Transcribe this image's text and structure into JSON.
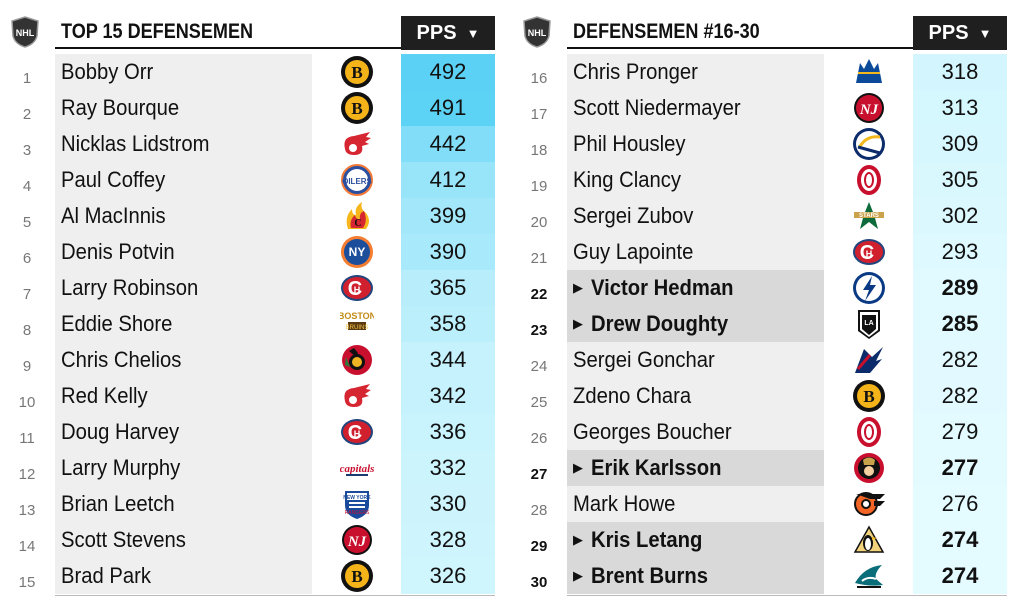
{
  "chart_data": [
    {
      "type": "table",
      "title": "TOP 15 DEFENSEMEN",
      "value_header": "PPS",
      "rows": [
        {
          "rank": "1",
          "name": "Bobby Orr",
          "team": "bruins",
          "value": 492,
          "highlight": false
        },
        {
          "rank": "2",
          "name": "Ray Bourque",
          "team": "bruins",
          "value": 491,
          "highlight": false
        },
        {
          "rank": "3",
          "name": "Nicklas Lidstrom",
          "team": "red-wings",
          "value": 442,
          "highlight": false
        },
        {
          "rank": "4",
          "name": "Paul Coffey",
          "team": "oilers",
          "value": 412,
          "highlight": false
        },
        {
          "rank": "5",
          "name": "Al MacInnis",
          "team": "flames",
          "value": 399,
          "highlight": false
        },
        {
          "rank": "6",
          "name": "Denis Potvin",
          "team": "islanders",
          "value": 390,
          "highlight": false
        },
        {
          "rank": "7",
          "name": "Larry Robinson",
          "team": "canadiens",
          "value": 365,
          "highlight": false
        },
        {
          "rank": "8",
          "name": "Eddie Shore",
          "team": "boston",
          "value": 358,
          "highlight": false
        },
        {
          "rank": "9",
          "name": "Chris Chelios",
          "team": "blackhawks",
          "value": 344,
          "highlight": false
        },
        {
          "rank": "10",
          "name": "Red Kelly",
          "team": "red-wings",
          "value": 342,
          "highlight": false
        },
        {
          "rank": "11",
          "name": "Doug Harvey",
          "team": "canadiens",
          "value": 336,
          "highlight": false
        },
        {
          "rank": "12",
          "name": "Larry Murphy",
          "team": "capitals",
          "value": 332,
          "highlight": false
        },
        {
          "rank": "13",
          "name": "Brian Leetch",
          "team": "rangers",
          "value": 330,
          "highlight": false
        },
        {
          "rank": "14",
          "name": "Scott Stevens",
          "team": "devils",
          "value": 328,
          "highlight": false
        },
        {
          "rank": "15",
          "name": "Brad Park",
          "team": "bruins",
          "value": 326,
          "highlight": false
        }
      ]
    },
    {
      "type": "table",
      "title": "DEFENSEMEN #16-30",
      "value_header": "PPS",
      "rows": [
        {
          "rank": "16",
          "name": "Chris Pronger",
          "team": "blues",
          "value": 318,
          "highlight": false
        },
        {
          "rank": "17",
          "name": "Scott Niedermayer",
          "team": "devils",
          "value": 313,
          "highlight": false
        },
        {
          "rank": "18",
          "name": "Phil Housley",
          "team": "sabres",
          "value": 309,
          "highlight": false
        },
        {
          "rank": "19",
          "name": "King Clancy",
          "team": "senators-o",
          "value": 305,
          "highlight": false
        },
        {
          "rank": "20",
          "name": "Sergei Zubov",
          "team": "stars",
          "value": 302,
          "highlight": false
        },
        {
          "rank": "21",
          "name": "Guy Lapointe",
          "team": "canadiens",
          "value": 293,
          "highlight": false
        },
        {
          "rank": "22",
          "name": "Victor Hedman",
          "team": "lightning",
          "value": 289,
          "highlight": true
        },
        {
          "rank": "23",
          "name": "Drew Doughty",
          "team": "kings",
          "value": 285,
          "highlight": true
        },
        {
          "rank": "24",
          "name": "Sergei Gonchar",
          "team": "capitals-eagle",
          "value": 282,
          "highlight": false
        },
        {
          "rank": "25",
          "name": "Zdeno Chara",
          "team": "bruins",
          "value": 282,
          "highlight": false
        },
        {
          "rank": "26",
          "name": "Georges Boucher",
          "team": "senators-o",
          "value": 279,
          "highlight": false
        },
        {
          "rank": "27",
          "name": "Erik Karlsson",
          "team": "senators",
          "value": 277,
          "highlight": true
        },
        {
          "rank": "28",
          "name": "Mark Howe",
          "team": "flyers",
          "value": 276,
          "highlight": false
        },
        {
          "rank": "29",
          "name": "Kris Letang",
          "team": "penguins",
          "value": 274,
          "highlight": true
        },
        {
          "rank": "30",
          "name": "Brent Burns",
          "team": "sharks",
          "value": 274,
          "highlight": true
        }
      ]
    }
  ],
  "colors": {
    "value_low": "#e4fbff",
    "value_high": "#5bd2f5",
    "name_bg": "#efefef",
    "highlight_bg": "#d9d9d9",
    "header_bg": "#1f1f1f"
  }
}
